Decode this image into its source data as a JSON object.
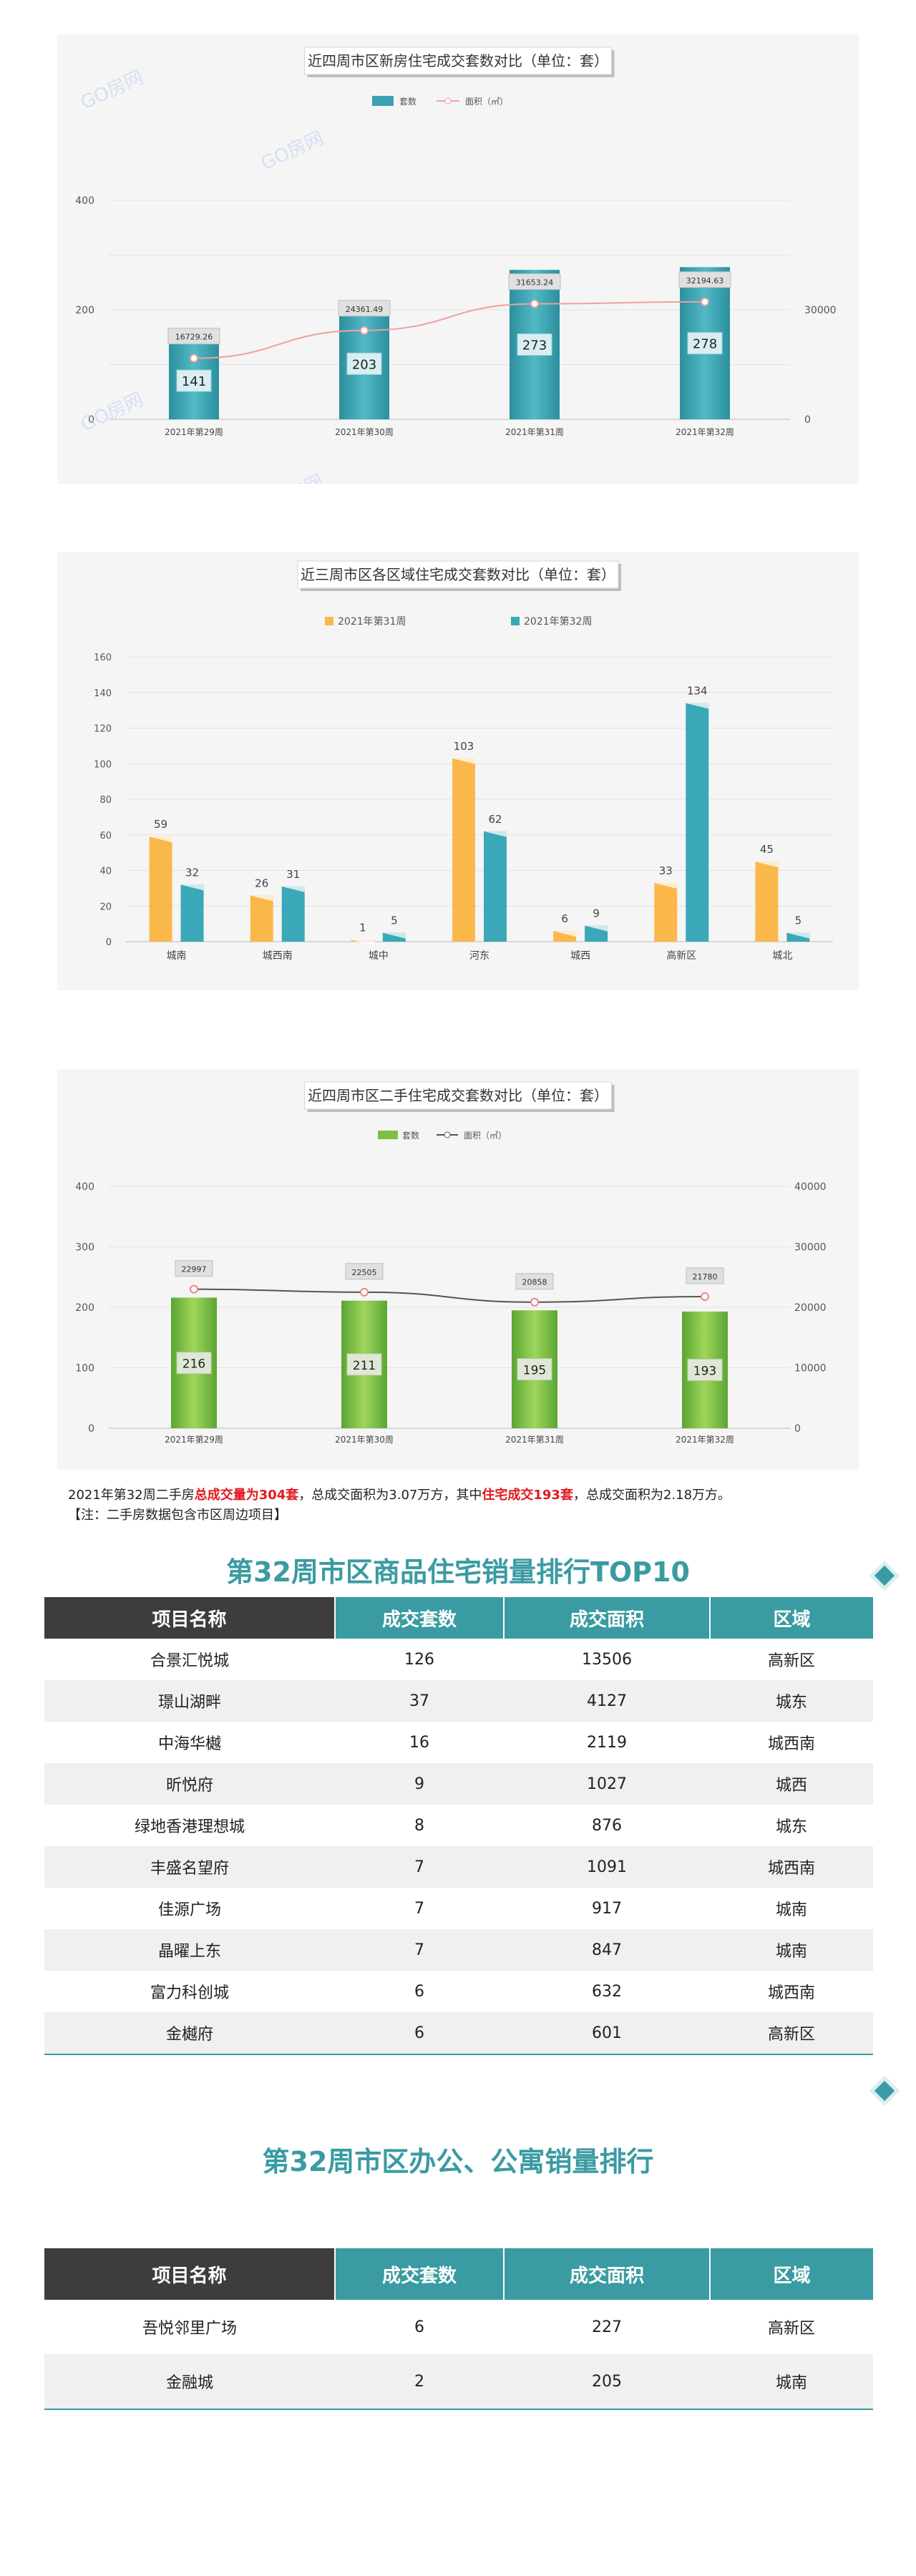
{
  "watermark": "GO房网",
  "chart_data": [
    {
      "type": "bar",
      "title": "近四周市区新房住宅成交套数对比（单位：套）",
      "categories": [
        "2021年第29周",
        "2021年第30周",
        "2021年第31周",
        "2021年第32周"
      ],
      "series": [
        {
          "name": "套数",
          "values": [
            141,
            203,
            273,
            278
          ],
          "axis": "left",
          "color": "#3aa3b1"
        },
        {
          "name": "面积（㎡）",
          "type": "line",
          "values": [
            16729.26,
            24361.49,
            31653.24,
            32194.63
          ],
          "axis": "right",
          "color": "#f0a0a0"
        }
      ],
      "ylim": [
        0,
        400
      ],
      "yticks": [
        0,
        200,
        400
      ],
      "y2lim": [
        0,
        60000
      ],
      "y2ticks": [
        0,
        30000
      ],
      "grid": true,
      "legend": "top-center"
    },
    {
      "type": "bar",
      "title": "近三周市区各区域住宅成交套数对比（单位：套）",
      "categories": [
        "城南",
        "城西南",
        "城中",
        "河东",
        "城西",
        "高新区",
        "城北"
      ],
      "series": [
        {
          "name": "2021年第31周",
          "values": [
            59,
            26,
            1,
            103,
            6,
            33,
            45
          ],
          "color": "#fbb84a"
        },
        {
          "name": "2021年第32周",
          "values": [
            32,
            31,
            5,
            62,
            9,
            134,
            5
          ],
          "color": "#3aa8b8"
        }
      ],
      "ylim": [
        0,
        160
      ],
      "yticks": [
        0,
        20,
        40,
        60,
        80,
        100,
        120,
        140,
        160
      ],
      "grid": true,
      "legend": "top-center"
    },
    {
      "type": "bar",
      "title": "近四周市区二手住宅成交套数对比（单位：套）",
      "categories": [
        "2021年第29周",
        "2021年第30周",
        "2021年第31周",
        "2021年第32周"
      ],
      "series": [
        {
          "name": "套数",
          "values": [
            216,
            211,
            195,
            193
          ],
          "axis": "left",
          "color": "#7bc043"
        },
        {
          "name": "面积（㎡）",
          "type": "line",
          "values": [
            22997,
            22505,
            20858,
            21780
          ],
          "axis": "right",
          "color": "#555555"
        }
      ],
      "ylim": [
        0,
        400
      ],
      "yticks": [
        0,
        100,
        200,
        300,
        400
      ],
      "y2lim": [
        0,
        40000
      ],
      "y2ticks": [
        0,
        10000,
        20000,
        30000,
        40000
      ],
      "grid": true,
      "legend": "top-center"
    }
  ],
  "note": {
    "p1": "2021年第32周二手房",
    "h1": "总成交量为304套",
    "p2": "，总成交面积为3.07万方，其中",
    "h2": "住宅成交193套",
    "p3": "，总成交面积为2.18万方。",
    "line2": "【注：二手房数据包含市区周边项目】"
  },
  "table1": {
    "title": "第32周市区商品住宅销量排行TOP10",
    "headers": [
      "项目名称",
      "成交套数",
      "成交面积",
      "区域"
    ],
    "rows": [
      [
        "合景汇悦城",
        "126",
        "13506",
        "高新区"
      ],
      [
        "璟山湖畔",
        "37",
        "4127",
        "城东"
      ],
      [
        "中海华樾",
        "16",
        "2119",
        "城西南"
      ],
      [
        "昕悦府",
        "9",
        "1027",
        "城西"
      ],
      [
        "绿地香港理想城",
        "8",
        "876",
        "城东"
      ],
      [
        "丰盛名望府",
        "7",
        "1091",
        "城西南"
      ],
      [
        "佳源广场",
        "7",
        "917",
        "城南"
      ],
      [
        "晶曜上东",
        "7",
        "847",
        "城南"
      ],
      [
        "富力科创城",
        "6",
        "632",
        "城西南"
      ],
      [
        "金樾府",
        "6",
        "601",
        "高新区"
      ]
    ]
  },
  "table2": {
    "title": "第32周市区办公、公寓销量排行",
    "headers": [
      "项目名称",
      "成交套数",
      "成交面积",
      "区域"
    ],
    "rows": [
      [
        "吾悦邻里广场",
        "6",
        "227",
        "高新区"
      ],
      [
        "金融城",
        "2",
        "205",
        "城南"
      ]
    ]
  }
}
